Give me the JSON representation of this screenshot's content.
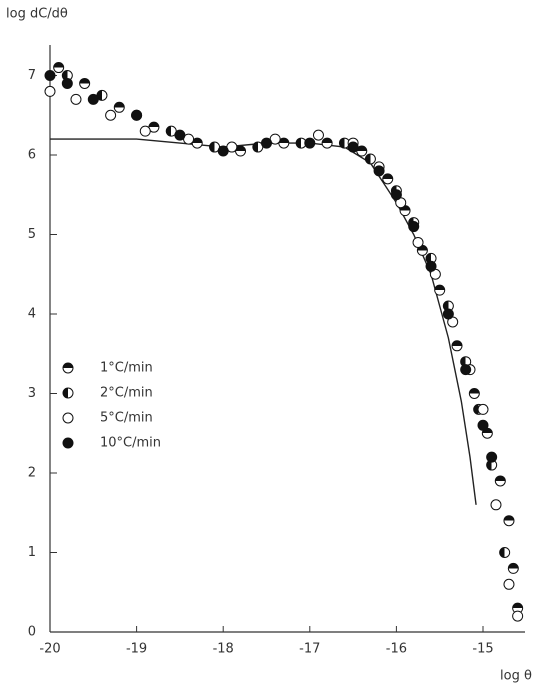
{
  "chart_data": {
    "type": "scatter",
    "ylabel": "log dC/dθ",
    "xlabel": "log θ",
    "xlim": [
      -20,
      -14.4
    ],
    "ylim": [
      0,
      7.3
    ],
    "xticks": [
      -20,
      -19,
      -18,
      -17,
      -16,
      -15
    ],
    "yticks": [
      0,
      1,
      2,
      3,
      4,
      5,
      6,
      7
    ],
    "series": [
      {
        "name": "1°C/min",
        "color": "#111",
        "marker": "half-top",
        "x": [
          -19.9,
          -19.6,
          -19.2,
          -18.8,
          -18.3,
          -17.8,
          -17.3,
          -16.8,
          -16.4,
          -16.1,
          -15.9,
          -15.7,
          -15.5,
          -15.3,
          -15.1,
          -14.95,
          -14.8,
          -14.7,
          -14.65,
          -14.6
        ],
        "values": [
          7.1,
          6.9,
          6.6,
          6.35,
          6.15,
          6.05,
          6.15,
          6.15,
          6.05,
          5.7,
          5.3,
          4.8,
          4.3,
          3.6,
          3.0,
          2.5,
          1.9,
          1.4,
          0.8,
          0.3
        ]
      },
      {
        "name": "2°C/min",
        "color": "#111",
        "marker": "half-left",
        "x": [
          -19.8,
          -19.4,
          -19.0,
          -18.6,
          -18.1,
          -17.6,
          -17.1,
          -16.6,
          -16.3,
          -16.0,
          -15.8,
          -15.6,
          -15.4,
          -15.2,
          -15.05,
          -14.9,
          -14.75
        ],
        "values": [
          7.0,
          6.75,
          6.5,
          6.3,
          6.1,
          6.1,
          6.15,
          6.15,
          5.95,
          5.55,
          5.15,
          4.7,
          4.1,
          3.4,
          2.8,
          2.1,
          1.0
        ]
      },
      {
        "name": "5°C/min",
        "color": "#111",
        "marker": "open",
        "x": [
          -20.0,
          -19.7,
          -19.3,
          -18.9,
          -18.4,
          -17.9,
          -17.4,
          -16.9,
          -16.5,
          -16.2,
          -15.95,
          -15.75,
          -15.55,
          -15.35,
          -15.15,
          -15.0,
          -14.85,
          -14.7,
          -14.6
        ],
        "values": [
          6.8,
          6.7,
          6.5,
          6.3,
          6.2,
          6.1,
          6.2,
          6.25,
          6.15,
          5.85,
          5.4,
          4.9,
          4.5,
          3.9,
          3.3,
          2.8,
          1.6,
          0.6,
          0.2
        ]
      },
      {
        "name": "10°C/min",
        "color": "#111",
        "marker": "filled",
        "x": [
          -20.0,
          -19.8,
          -19.5,
          -19.0,
          -18.5,
          -18.0,
          -17.5,
          -17.0,
          -16.5,
          -16.2,
          -16.0,
          -15.8,
          -15.6,
          -15.4,
          -15.2,
          -15.0,
          -14.9
        ],
        "values": [
          7.0,
          6.9,
          6.7,
          6.5,
          6.25,
          6.05,
          6.15,
          6.15,
          6.1,
          5.8,
          5.5,
          5.1,
          4.6,
          4.0,
          3.3,
          2.6,
          2.2
        ]
      }
    ],
    "curve": {
      "color": "#222",
      "x": [
        -20,
        -19,
        -18.5,
        -18,
        -17.5,
        -17,
        -16.6,
        -16.3,
        -16,
        -15.8,
        -15.6,
        -15.4,
        -15.25,
        -15.15,
        -15.08
      ],
      "values": [
        6.2,
        6.2,
        6.15,
        6.1,
        6.15,
        6.15,
        6.1,
        5.9,
        5.4,
        5.0,
        4.5,
        3.7,
        2.9,
        2.2,
        1.6
      ]
    }
  }
}
